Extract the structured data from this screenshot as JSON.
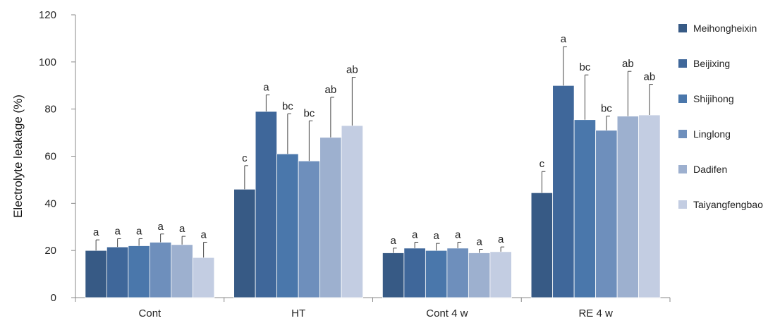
{
  "chart_data": {
    "type": "bar",
    "title": "",
    "xlabel": "",
    "ylabel": "Electrolyte leakage (%)",
    "ylim": [
      0,
      120
    ],
    "yticks": [
      0,
      20,
      40,
      60,
      80,
      100,
      120
    ],
    "grid": false,
    "legend_position": "right",
    "categories": [
      "Cont",
      "HT",
      "Cont 4 w",
      "RE 4 w"
    ],
    "series": [
      {
        "name": "Meihongheixin",
        "color": "#375a85",
        "values": [
          20,
          46,
          19,
          44.5
        ],
        "errors": [
          4.5,
          10,
          2,
          9
        ],
        "letters": [
          "a",
          "c",
          "a",
          "c"
        ]
      },
      {
        "name": "Beijixing",
        "color": "#3f679a",
        "values": [
          21.5,
          79,
          21,
          90
        ],
        "errors": [
          3.5,
          7,
          2.5,
          16.5
        ],
        "letters": [
          "a",
          "a",
          "a",
          "a"
        ]
      },
      {
        "name": "Shijihong",
        "color": "#4a77ab",
        "values": [
          22,
          61,
          20,
          75.5
        ],
        "errors": [
          3,
          17,
          3,
          19
        ],
        "letters": [
          "a",
          "bc",
          "a",
          "bc"
        ]
      },
      {
        "name": "Linglong",
        "color": "#6e8fbc",
        "values": [
          23.5,
          58,
          21,
          71
        ],
        "errors": [
          3.5,
          17,
          2.5,
          6
        ],
        "letters": [
          "a",
          "bc",
          "a",
          "bc"
        ]
      },
      {
        "name": "Dadifen",
        "color": "#9db0cf",
        "values": [
          22.5,
          68,
          19,
          77
        ],
        "errors": [
          3.5,
          17,
          1.5,
          19
        ],
        "letters": [
          "a",
          "ab",
          "a",
          "ab"
        ]
      },
      {
        "name": "Taiyangfengbao",
        "color": "#c3cde2",
        "values": [
          17,
          73,
          19.5,
          77.5
        ],
        "errors": [
          6.5,
          20.5,
          2,
          13
        ],
        "letters": [
          "a",
          "ab",
          "a",
          "ab"
        ]
      }
    ]
  }
}
